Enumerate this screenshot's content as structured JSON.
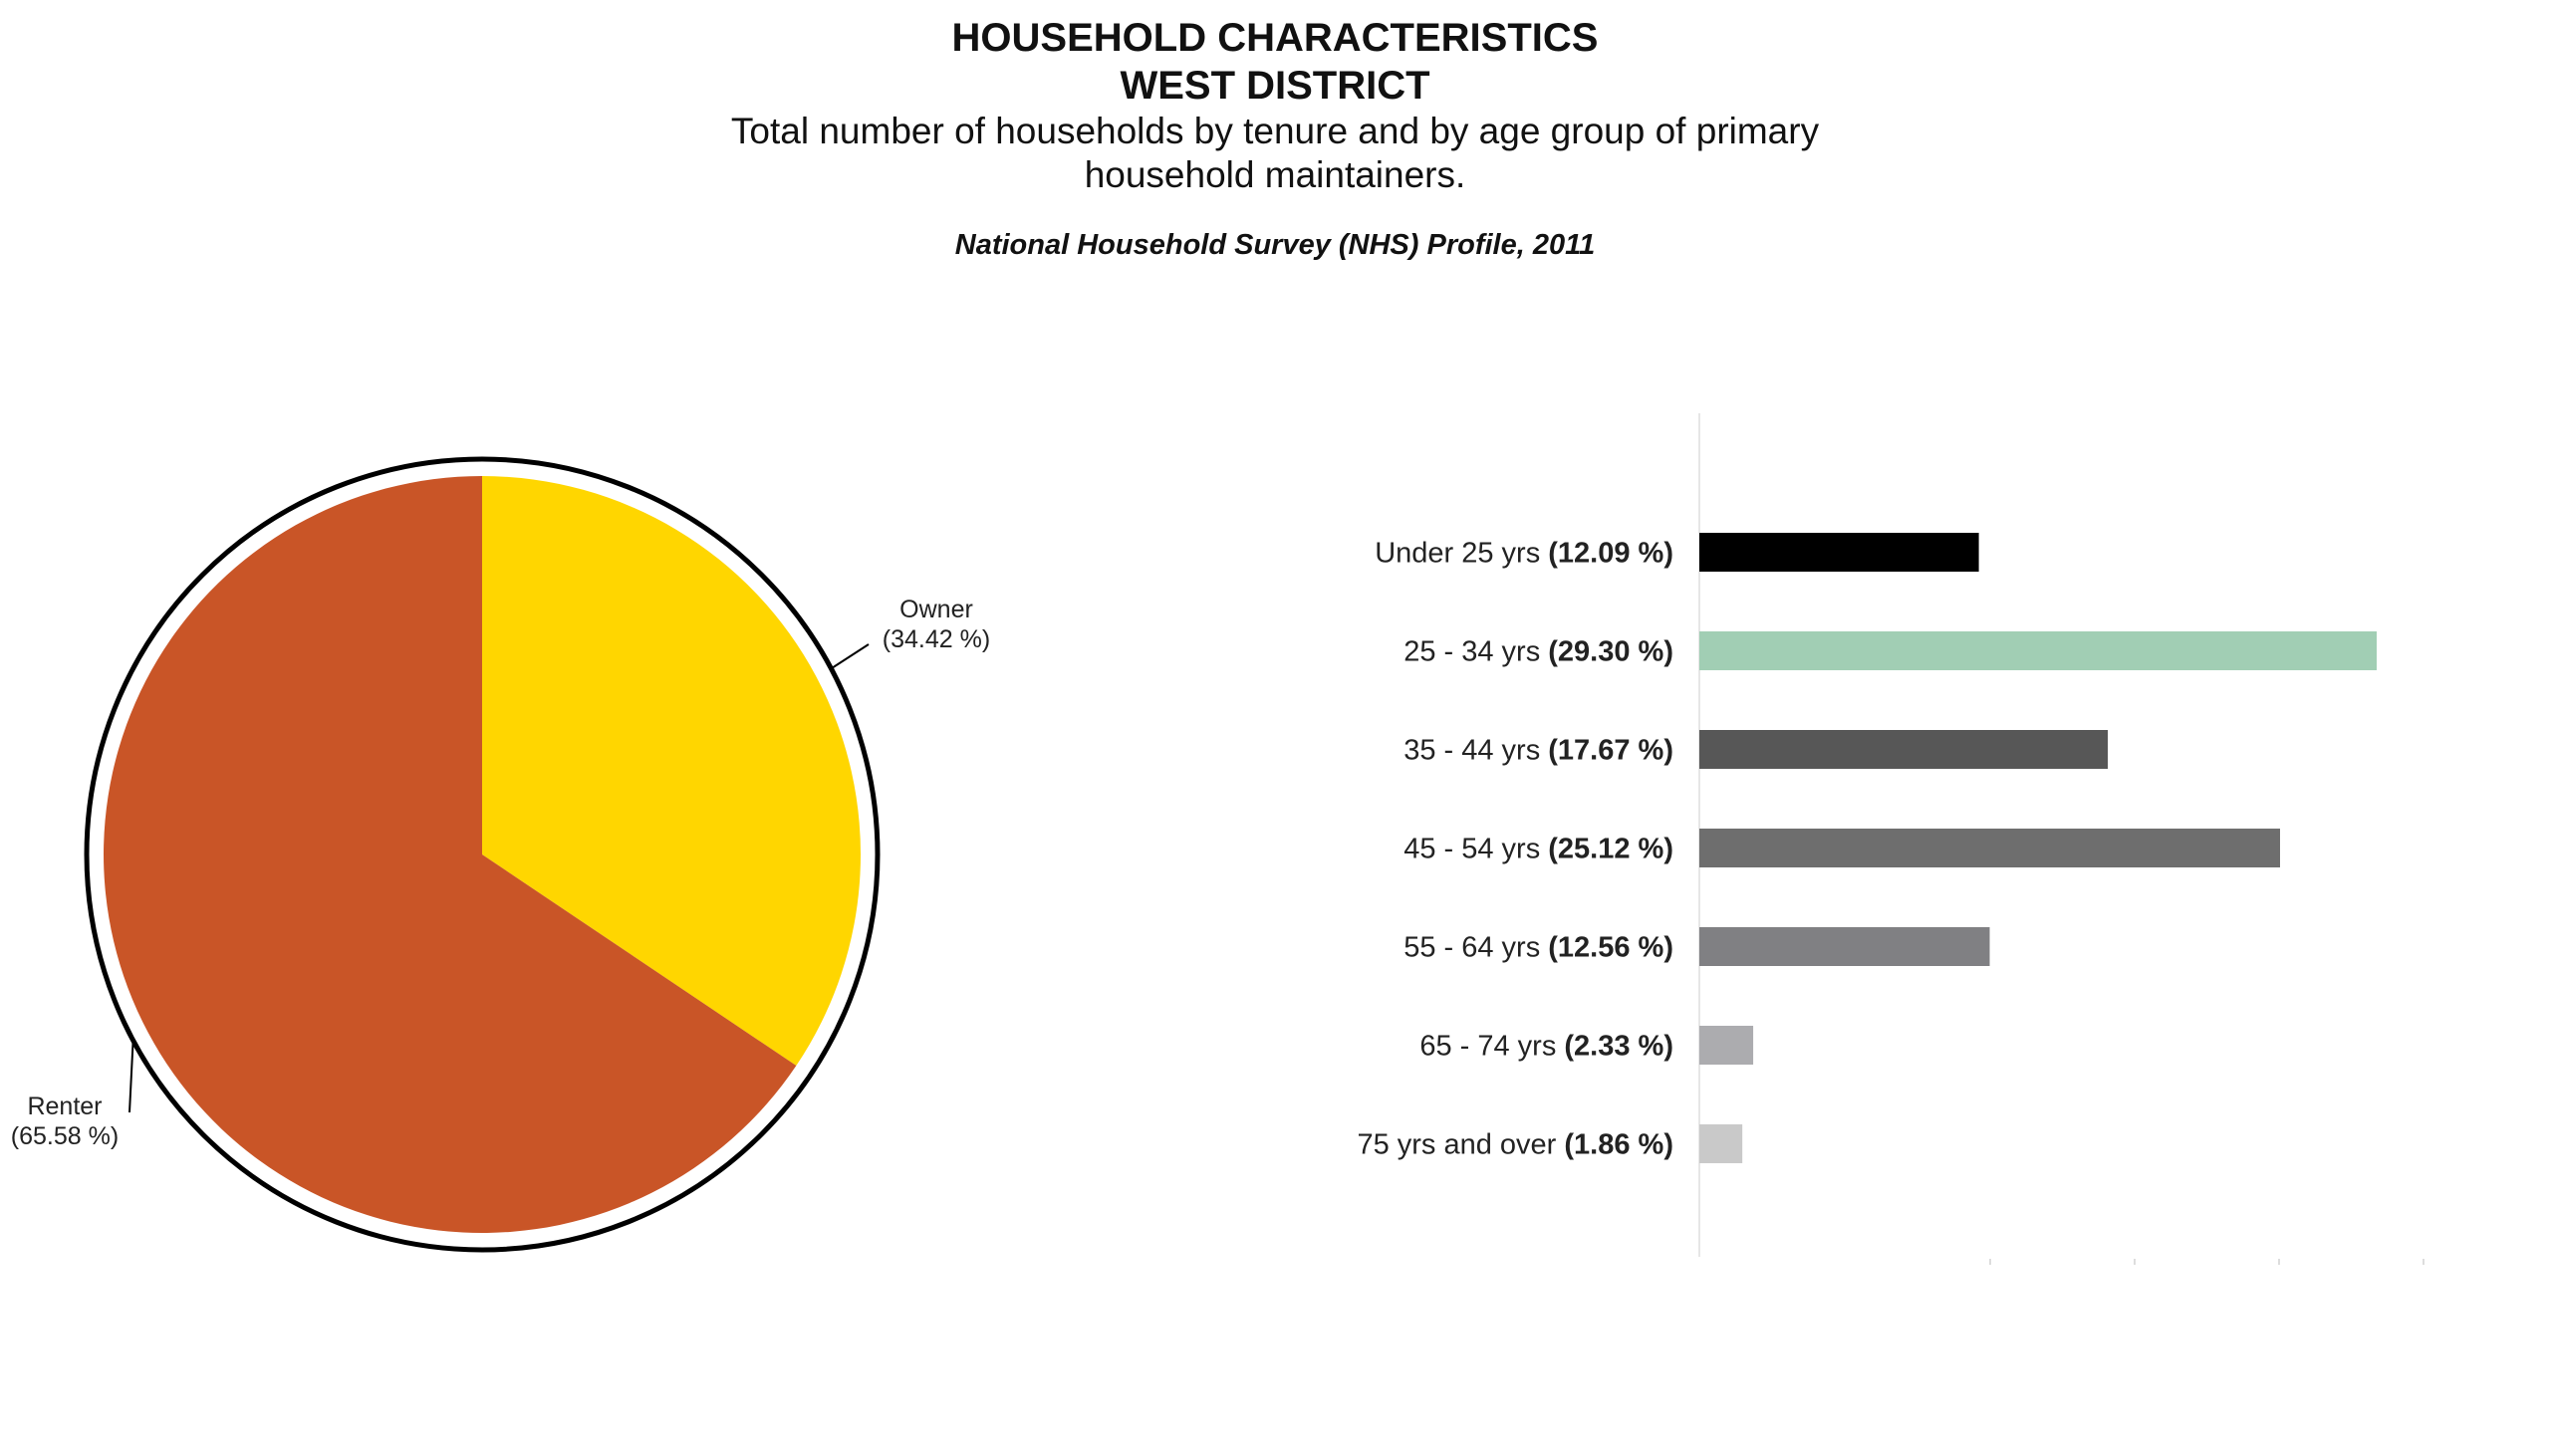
{
  "header": {
    "title_line1": "HOUSEHOLD CHARACTERISTICS",
    "title_line2": "WEST DISTRICT",
    "subtitle_line1": "Total number of households by tenure and by age group of primary",
    "subtitle_line2": "household maintainers.",
    "source": "National Household Survey (NHS) Profile, 2011"
  },
  "chart_data": [
    {
      "type": "pie",
      "labels": [
        "Owner",
        "Renter"
      ],
      "values": [
        34.42,
        65.58
      ],
      "value_labels": [
        "(34.42 %)",
        "(65.58 %)"
      ],
      "colors": [
        "#FFD600",
        "#C95527"
      ]
    },
    {
      "type": "bar",
      "orientation": "horizontal",
      "categories": [
        "Under 25 yrs",
        "25 - 34 yrs",
        "35 - 44 yrs",
        "45 - 54 yrs",
        "55 - 64 yrs",
        "65 - 74 yrs",
        "75 yrs and over"
      ],
      "values": [
        12.09,
        29.3,
        17.67,
        25.12,
        12.56,
        2.33,
        1.86
      ],
      "value_labels": [
        "(12.09 %)",
        "(29.30 %)",
        "(17.67 %)",
        "(25.12 %)",
        "(12.56 %)",
        "(2.33 %)",
        "(1.86 %)"
      ],
      "colors": [
        "#000000",
        "#A1CEB4",
        "#575757",
        "#6E6E6E",
        "#808083",
        "#ACACAF",
        "#C9C9C9"
      ],
      "xlim": [
        0,
        31
      ]
    }
  ]
}
